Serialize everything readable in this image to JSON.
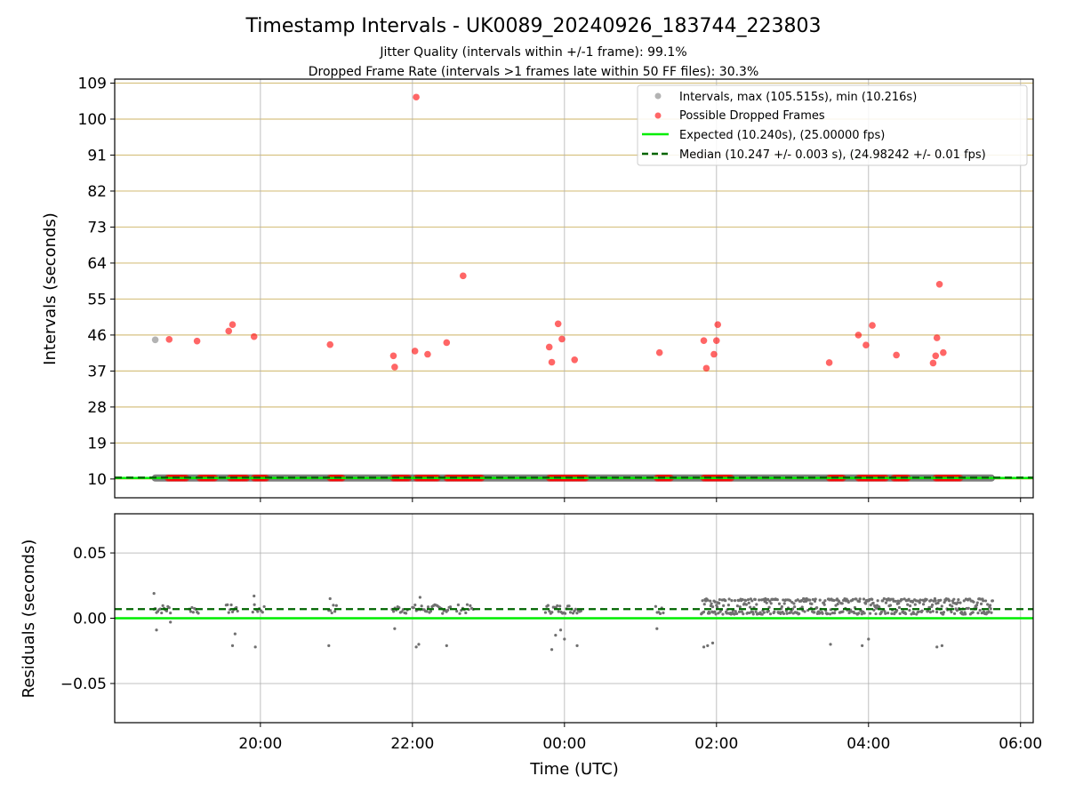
{
  "chart_data": [
    {
      "type": "scatter",
      "title": "Timestamp Intervals - UK0089_20240926_183744_223803",
      "subtitle_1": "Jitter Quality (intervals within +/-1 frame): 99.1%",
      "subtitle_2": "Dropped Frame Rate (intervals >1 frames late within 50 FF files): 30.3%",
      "ylabel": "Intervals (seconds)",
      "ylim": [
        5.3,
        110
      ],
      "yticks": [
        "10",
        "19",
        "28",
        "37",
        "46",
        "55",
        "64",
        "73",
        "82",
        "91",
        "100",
        "109"
      ],
      "xlim": [
        "18:05",
        "06:10"
      ],
      "grid": "vertical lines at x ticks, horizontal gold lines at y ticks",
      "legend_position": "top-right",
      "legend": [
        "Intervals, max (105.515s), min (10.216s)",
        "Possible Dropped Frames",
        "Expected (10.240s), (25.00000 fps)",
        "Median (10.247 +/- 0.003 s), (24.98242 +/- 0.01 fps)"
      ],
      "expected_interval": 10.24,
      "median_interval": 10.247,
      "colors": {
        "intervals": "#808080",
        "dropped": "#ff0000",
        "expected": "#00ee00",
        "median": "#006400",
        "ygrid": "#d7c282"
      },
      "series": [
        {
          "name": "Intervals, max (105.515s), min (10.216s)",
          "points": [
            [
              "18:37",
              44.8
            ]
          ],
          "baseline_band": {
            "y": 10.24,
            "x_start": "18:37",
            "x_end": "05:37"
          }
        },
        {
          "name": "Possible Dropped Frames",
          "points": [
            [
              "18:48",
              44.9
            ],
            [
              "19:10",
              44.5
            ],
            [
              "19:35",
              47.0
            ],
            [
              "19:38",
              48.6
            ],
            [
              "19:55",
              45.6
            ],
            [
              "20:55",
              43.6
            ],
            [
              "21:45",
              40.8
            ],
            [
              "21:46",
              38.0
            ],
            [
              "22:03",
              105.5
            ],
            [
              "22:02",
              42.0
            ],
            [
              "22:12",
              41.2
            ],
            [
              "22:27",
              44.1
            ],
            [
              "22:40",
              60.8
            ],
            [
              "23:48",
              43.0
            ],
            [
              "23:50",
              39.2
            ],
            [
              "23:55",
              48.8
            ],
            [
              "23:58",
              45.0
            ],
            [
              "00:08",
              39.8
            ],
            [
              "01:15",
              41.6
            ],
            [
              "01:50",
              44.6
            ],
            [
              "01:52",
              37.7
            ],
            [
              "01:58",
              41.2
            ],
            [
              "02:00",
              44.6
            ],
            [
              "02:01",
              48.6
            ],
            [
              "03:29",
              39.1
            ],
            [
              "03:52",
              46.0
            ],
            [
              "03:58",
              43.5
            ],
            [
              "04:03",
              48.4
            ],
            [
              "04:22",
              41.0
            ],
            [
              "04:51",
              39.0
            ],
            [
              "04:53",
              40.8
            ],
            [
              "04:54",
              45.3
            ],
            [
              "04:56",
              58.7
            ],
            [
              "04:59",
              41.6
            ]
          ],
          "near_baseline_clusters": [
            [
              "18:47",
              "19:02"
            ],
            [
              "19:12",
              "19:25"
            ],
            [
              "19:36",
              "19:50"
            ],
            [
              "19:55",
              "20:05"
            ],
            [
              "20:55",
              "21:05"
            ],
            [
              "21:45",
              "21:58"
            ],
            [
              "22:03",
              "22:20"
            ],
            [
              "22:27",
              "22:45"
            ],
            [
              "22:45",
              "22:55"
            ],
            [
              "23:48",
              "24:18"
            ],
            [
              "01:13",
              "01:25"
            ],
            [
              "01:50",
              "02:12"
            ],
            [
              "03:29",
              "03:41"
            ],
            [
              "03:52",
              "04:14"
            ],
            [
              "04:20",
              "04:31"
            ],
            [
              "04:53",
              "05:13"
            ]
          ],
          "near_baseline_y": 10.24
        }
      ]
    },
    {
      "type": "scatter",
      "ylabel": "Residuals (seconds)",
      "xlabel": "Time (UTC)",
      "ylim": [
        -0.08,
        0.08
      ],
      "yticks": [
        "0.05",
        "0.00",
        "−0.05"
      ],
      "xticks": [
        "20:00",
        "22:00",
        "00:00",
        "02:00",
        "04:00",
        "06:00"
      ],
      "grid": "on",
      "expected_residual": 0.0,
      "median_residual": 0.007,
      "clusters": [
        {
          "x": [
            "18:36",
            "18:49"
          ],
          "count": 14
        },
        {
          "x": [
            "19:04",
            "19:11"
          ],
          "count": 8
        },
        {
          "x": [
            "19:33",
            "19:42"
          ],
          "count": 10
        },
        {
          "x": [
            "19:54",
            "20:03"
          ],
          "count": 8
        },
        {
          "x": [
            "20:54",
            "21:00"
          ],
          "count": 6
        },
        {
          "x": [
            "21:44",
            "21:56"
          ],
          "count": 12
        },
        {
          "x": [
            "22:00",
            "22:30"
          ],
          "count": 30
        },
        {
          "x": [
            "22:35",
            "22:48"
          ],
          "count": 12
        },
        {
          "x": [
            "23:45",
            "00:13"
          ],
          "count": 28
        },
        {
          "x": [
            "01:12",
            "01:18"
          ],
          "count": 6
        },
        {
          "x": [
            "01:48",
            "05:38"
          ],
          "count": 460,
          "dense": true
        }
      ],
      "outliers": [
        [
          "18:38",
          -0.009
        ],
        [
          "18:49",
          -0.003
        ],
        [
          "19:38",
          -0.021
        ],
        [
          "19:40",
          -0.012
        ],
        [
          "19:56",
          -0.022
        ],
        [
          "20:54",
          -0.021
        ],
        [
          "21:46",
          -0.008
        ],
        [
          "22:03",
          -0.022
        ],
        [
          "22:05",
          -0.02
        ],
        [
          "22:27",
          -0.021
        ],
        [
          "23:50",
          -0.024
        ],
        [
          "23:53",
          -0.013
        ],
        [
          "23:57",
          -0.009
        ],
        [
          "00:00",
          -0.016
        ],
        [
          "00:10",
          -0.021
        ],
        [
          "01:13",
          -0.008
        ],
        [
          "01:50",
          -0.022
        ],
        [
          "01:53",
          -0.021
        ],
        [
          "01:57",
          -0.019
        ],
        [
          "03:30",
          -0.02
        ],
        [
          "03:55",
          -0.021
        ],
        [
          "04:00",
          -0.016
        ],
        [
          "04:54",
          -0.022
        ],
        [
          "04:58",
          -0.021
        ]
      ],
      "high_points": [
        [
          "18:36",
          0.019
        ],
        [
          "19:55",
          0.017
        ],
        [
          "20:55",
          0.015
        ],
        [
          "22:06",
          0.016
        ]
      ]
    }
  ]
}
